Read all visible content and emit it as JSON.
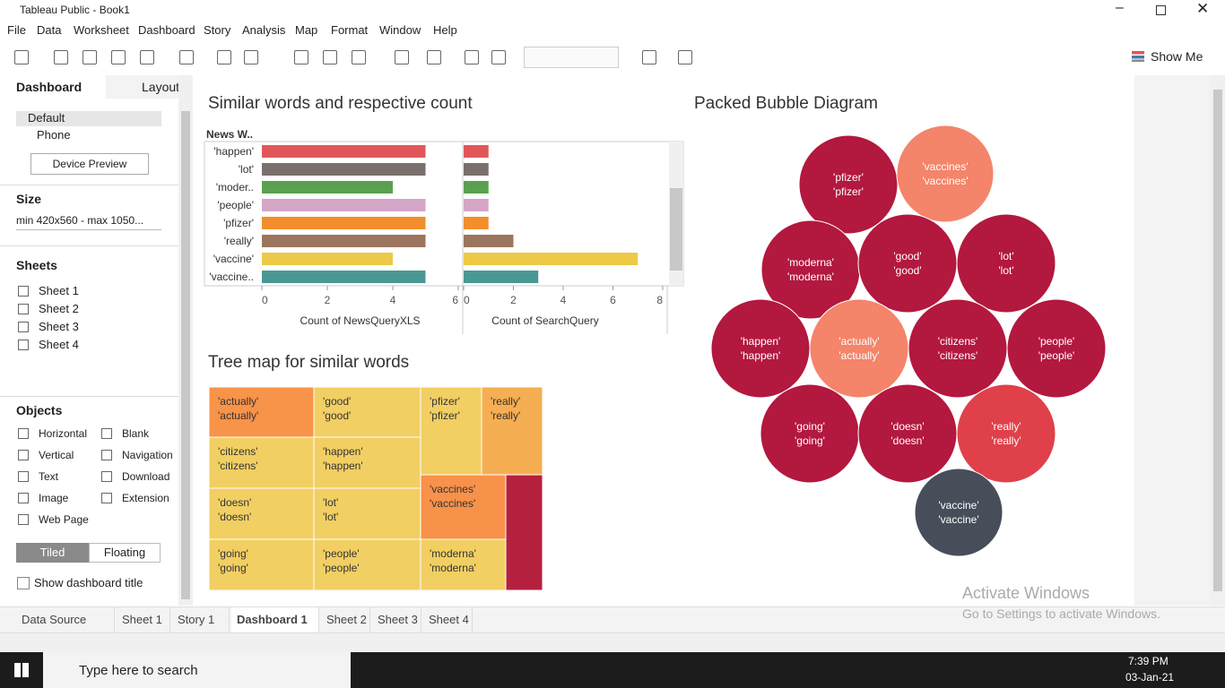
{
  "window": {
    "title": "Tableau Public - Book1"
  },
  "menu": [
    "File",
    "Data",
    "Worksheet",
    "Dashboard",
    "Story",
    "Analysis",
    "Map",
    "Format",
    "Window",
    "Help"
  ],
  "toolbar": {
    "show_me": "Show Me"
  },
  "side_panel": {
    "tabs": [
      "Dashboard",
      "Layout"
    ],
    "devices": [
      "Default",
      "Phone"
    ],
    "device_preview": "Device Preview",
    "size_heading": "Size",
    "size_value": "min 420x560 - max 1050...",
    "sheets_heading": "Sheets",
    "sheets": [
      "Sheet 1",
      "Sheet 2",
      "Sheet 3",
      "Sheet 4"
    ],
    "objects_heading": "Objects",
    "objects": [
      "Horizontal",
      "Blank",
      "Vertical",
      "Navigation",
      "Text",
      "Download",
      "Image",
      "Extension",
      "Web Page"
    ],
    "layout_modes": [
      "Tiled",
      "Floating"
    ],
    "show_title": "Show dashboard title"
  },
  "bar_chart": {
    "type": "bar",
    "title": "Similar  words and respective count",
    "row_header": "News W..",
    "categories": [
      "'happen'",
      "'lot'",
      "'moder..",
      "'people'",
      "'pfizer'",
      "'really'",
      "'vaccine'",
      "'vaccine.."
    ],
    "colors": [
      "#e15759",
      "#79706e",
      "#59a14f",
      "#d4a6c8",
      "#f28e2b",
      "#9c755f",
      "#edc948",
      "#499894"
    ],
    "panes": [
      {
        "axis_title": "Count of NewsQueryXLS",
        "xlim": [
          0,
          6
        ],
        "xticks": [
          0,
          2,
          4,
          6
        ],
        "values": [
          5,
          5,
          4,
          5,
          5,
          5,
          4,
          5
        ]
      },
      {
        "axis_title": "Count of SearchQuery",
        "xlim": [
          0,
          8
        ],
        "xticks": [
          0,
          2,
          4,
          6,
          8
        ],
        "values": [
          1,
          1,
          1,
          1,
          1,
          2,
          7,
          3
        ]
      }
    ]
  },
  "treemap": {
    "title": "Tree map for similar words",
    "cells": [
      {
        "lines": [
          "'actually'",
          "'actually'"
        ],
        "color": "#f8934a"
      },
      {
        "lines": [
          "'good'",
          "'good'"
        ],
        "color": "#f2cf63"
      },
      {
        "lines": [
          "'pfizer'",
          "'pfizer'"
        ],
        "color": "#f2cf63"
      },
      {
        "lines": [
          "'really'",
          "'really'"
        ],
        "color": "#f6ae52"
      },
      {
        "lines": [
          "'citizens'",
          "'citizens'"
        ],
        "color": "#f2cf63"
      },
      {
        "lines": [
          "'happen'",
          "'happen'"
        ],
        "color": "#f2cf63"
      },
      {
        "lines": [
          "'doesn'",
          "'doesn'"
        ],
        "color": "#f2cf63"
      },
      {
        "lines": [
          "'lot'",
          "'lot'"
        ],
        "color": "#f2cf63"
      },
      {
        "lines": [
          "'vaccines'",
          "'vaccines'"
        ],
        "color": "#f8914a"
      },
      {
        "lines": [
          "'going'",
          "'going'"
        ],
        "color": "#f2cf63"
      },
      {
        "lines": [
          "'people'",
          "'people'"
        ],
        "color": "#f2cf63"
      },
      {
        "lines": [
          "'moderna'",
          "'moderna'"
        ],
        "color": "#f2cf63"
      }
    ]
  },
  "bubbles": {
    "title": "Packed Bubble Diagram",
    "items": [
      {
        "lines": [
          "'pfizer'",
          "'pfizer'"
        ],
        "color": "#b3183f"
      },
      {
        "lines": [
          "'vaccines'",
          "'vaccines'"
        ],
        "color": "#f4846a"
      },
      {
        "lines": [
          "'moderna'",
          "'moderna'"
        ],
        "color": "#b3183f"
      },
      {
        "lines": [
          "'good'",
          "'good'"
        ],
        "color": "#b3183f"
      },
      {
        "lines": [
          "'lot'",
          "'lot'"
        ],
        "color": "#b3183f"
      },
      {
        "lines": [
          "'happen'",
          "'happen'"
        ],
        "color": "#b3183f"
      },
      {
        "lines": [
          "'actually'",
          "'actually'"
        ],
        "color": "#f4846a"
      },
      {
        "lines": [
          "'citizens'",
          "'citizens'"
        ],
        "color": "#b3183f"
      },
      {
        "lines": [
          "'people'",
          "'people'"
        ],
        "color": "#b3183f"
      },
      {
        "lines": [
          "'going'",
          "'going'"
        ],
        "color": "#b3183f"
      },
      {
        "lines": [
          "'doesn'",
          "'doesn'"
        ],
        "color": "#b3183f"
      },
      {
        "lines": [
          "'really'",
          "'really'"
        ],
        "color": "#e0404a"
      },
      {
        "lines": [
          "'vaccine'",
          "'vaccine'"
        ],
        "color": "#474e5a"
      }
    ]
  },
  "watermark": {
    "title": "Activate Windows",
    "subtitle": "Go to Settings to activate Windows."
  },
  "sheet_tabs": [
    "Data Source",
    "Sheet 1",
    "Story 1",
    "Dashboard 1",
    "Sheet 2",
    "Sheet 3",
    "Sheet 4"
  ],
  "taskbar": {
    "search": "Type here to search",
    "time": "7:39 PM",
    "date": "03-Jan-21"
  }
}
